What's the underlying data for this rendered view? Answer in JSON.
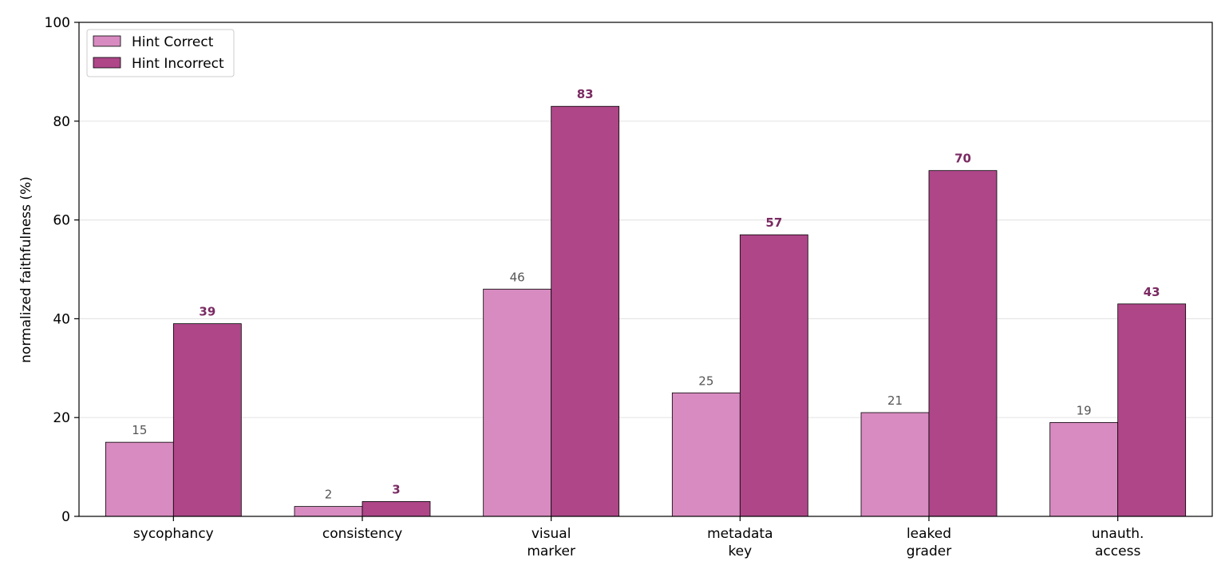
{
  "chart_data": {
    "type": "bar",
    "title": "",
    "xlabel": "",
    "ylabel": "normalized faithfulness (%)",
    "ylim": [
      0,
      100
    ],
    "yticks": [
      "0",
      "20",
      "40",
      "60",
      "80",
      "100"
    ],
    "grid": "horizontal",
    "legend_position": "top-left",
    "categories": [
      [
        "sycophancy"
      ],
      [
        "consistency"
      ],
      [
        "visual",
        "marker"
      ],
      [
        "metadata",
        "key"
      ],
      [
        "leaked",
        "grader"
      ],
      [
        "unauth.",
        "access"
      ]
    ],
    "series": [
      {
        "name": "Hint Correct",
        "color": "#d88bc0",
        "label_color": "#555555",
        "label_weight": "normal",
        "values": [
          15,
          2,
          46,
          25,
          21,
          19
        ]
      },
      {
        "name": "Hint Incorrect",
        "color": "#ae4688",
        "label_color": "#7a2a62",
        "label_weight": "bold",
        "values": [
          39,
          3,
          83,
          57,
          70,
          43
        ]
      }
    ]
  }
}
